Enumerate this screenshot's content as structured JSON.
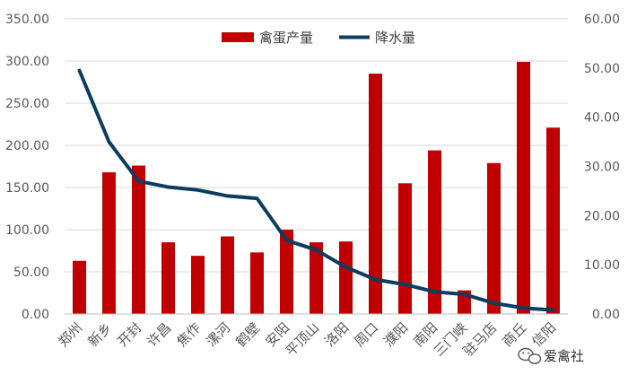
{
  "chart_data": {
    "type": "bar+line",
    "categories": [
      "郑州",
      "新乡",
      "开封",
      "许昌",
      "焦作",
      "漯河",
      "鹤壁",
      "安阳",
      "平顶山",
      "洛阳",
      "周口",
      "濮阳",
      "南阳",
      "三门峡",
      "驻马店",
      "商丘",
      "信阳"
    ],
    "series": [
      {
        "name": "禽蛋产量",
        "kind": "bar",
        "axis": "left",
        "color": "#C00000",
        "values": [
          63,
          168,
          176,
          85,
          69,
          92,
          73,
          100,
          85,
          86,
          285,
          155,
          194,
          28,
          179,
          299,
          221
        ]
      },
      {
        "name": "降水量",
        "kind": "line",
        "axis": "right",
        "color": "#0B3D5E",
        "values": [
          49.5,
          35,
          27,
          25.8,
          25.2,
          24,
          23.5,
          15,
          13,
          9.5,
          7,
          6,
          4.5,
          4,
          2.2,
          1.2,
          0.8
        ]
      }
    ],
    "y_left": {
      "min": 0,
      "max": 350,
      "step": 50,
      "ticks": [
        "0.00",
        "50.00",
        "100.00",
        "150.00",
        "200.00",
        "250.00",
        "300.00",
        "350.00"
      ]
    },
    "y_right": {
      "min": 0,
      "max": 60,
      "step": 10,
      "ticks": [
        "0.00",
        "10.00",
        "20.00",
        "30.00",
        "40.00",
        "50.00",
        "60.00"
      ]
    },
    "grid": true,
    "legend_position": "top-center"
  },
  "watermark": {
    "text": "爱禽社",
    "icon": "wechat-icon"
  }
}
